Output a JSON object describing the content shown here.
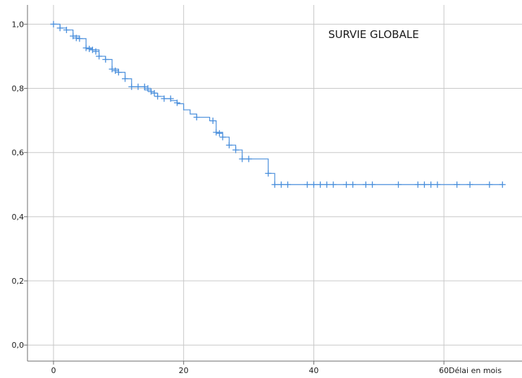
{
  "chart_data": {
    "type": "line",
    "title": "SURVIE GLOBALE",
    "xlabel": "Délai en mois",
    "ylabel": "",
    "xlim": [
      -4,
      72
    ],
    "ylim": [
      -0.05,
      1.06
    ],
    "x_ticks": [
      0,
      20,
      40,
      60
    ],
    "x_tick_labels": [
      "0",
      "20",
      "40",
      "60"
    ],
    "y_ticks": [
      0.0,
      0.2,
      0.4,
      0.6,
      0.8,
      1.0
    ],
    "y_tick_labels": [
      "0,0",
      "0,2",
      "0,4",
      "0,6",
      "0,8",
      "1,0"
    ],
    "grid": true,
    "legend": "none",
    "series_color": "#4a8fdc",
    "series": [
      {
        "step": {
          "x": [
            0,
            1,
            2,
            3,
            4,
            5,
            6,
            7,
            8,
            9,
            10,
            11,
            12,
            14,
            15,
            16,
            17,
            18,
            19,
            20,
            21,
            22,
            24,
            25,
            26,
            27,
            28,
            29,
            33,
            34,
            69
          ],
          "y": [
            1.0,
            0.988,
            0.982,
            0.963,
            0.955,
            0.926,
            0.92,
            0.9,
            0.89,
            0.86,
            0.85,
            0.83,
            0.805,
            0.795,
            0.785,
            0.775,
            0.768,
            0.762,
            0.752,
            0.733,
            0.72,
            0.71,
            0.699,
            0.663,
            0.648,
            0.623,
            0.608,
            0.58,
            0.535,
            0.5,
            0.5
          ]
        },
        "censored": {
          "x": [
            0,
            1,
            2,
            3,
            3.5,
            4,
            5,
            5.5,
            6,
            6.5,
            7,
            8,
            9,
            9.5,
            10,
            11,
            12,
            13,
            14,
            14.5,
            15,
            15.5,
            16,
            17,
            18,
            19,
            22,
            24.5,
            25,
            25.5,
            26,
            27,
            28,
            29,
            30,
            33,
            34,
            35,
            36,
            39,
            40,
            41,
            42,
            43,
            45,
            46,
            48,
            49,
            53,
            56,
            57,
            58,
            59,
            62,
            64,
            67,
            69
          ],
          "y": [
            1.0,
            0.988,
            0.982,
            0.963,
            0.957,
            0.955,
            0.926,
            0.923,
            0.92,
            0.915,
            0.9,
            0.89,
            0.86,
            0.855,
            0.85,
            0.83,
            0.805,
            0.805,
            0.805,
            0.8,
            0.79,
            0.785,
            0.775,
            0.768,
            0.768,
            0.755,
            0.71,
            0.699,
            0.663,
            0.66,
            0.648,
            0.623,
            0.608,
            0.58,
            0.58,
            0.535,
            0.5,
            0.5,
            0.5,
            0.5,
            0.5,
            0.5,
            0.5,
            0.5,
            0.5,
            0.5,
            0.5,
            0.5,
            0.5,
            0.5,
            0.5,
            0.5,
            0.5,
            0.5,
            0.5,
            0.5,
            0.5
          ]
        }
      }
    ]
  }
}
